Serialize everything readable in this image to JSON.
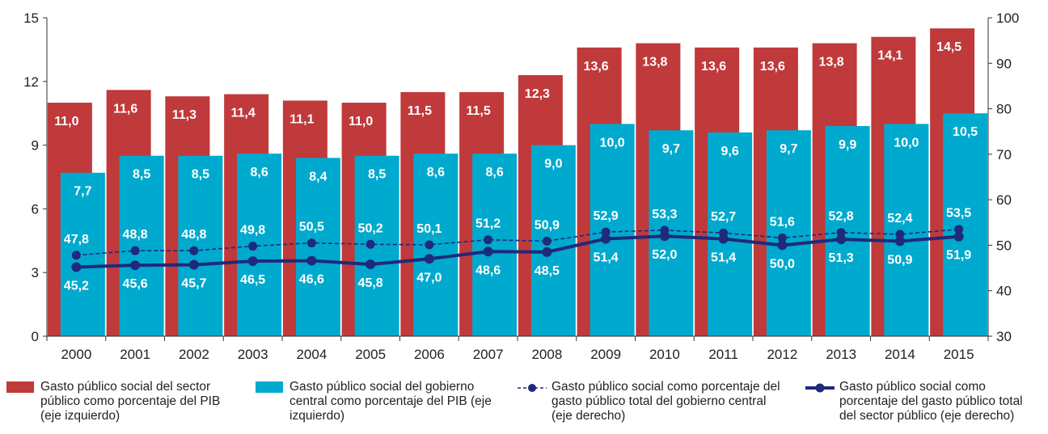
{
  "chart_data": {
    "type": "bar",
    "categories": [
      "2000",
      "2001",
      "2002",
      "2003",
      "2004",
      "2005",
      "2006",
      "2007",
      "2008",
      "2009",
      "2010",
      "2011",
      "2012",
      "2013",
      "2014",
      "2015"
    ],
    "y_left_ticks": [
      "0",
      "3",
      "6",
      "9",
      "12",
      "15"
    ],
    "y_right_ticks": [
      "30",
      "40",
      "50",
      "60",
      "70",
      "80",
      "90",
      "100"
    ],
    "ylim_left": [
      0,
      15
    ],
    "ylim_right": [
      30,
      100
    ],
    "grid": false,
    "legend_position": "bottom",
    "series": [
      {
        "name": "Gasto público social del sector público como porcentaje del PIB (eje izquierdo)",
        "kind": "bar",
        "axis": "left",
        "color": "#c0393b",
        "values": [
          11.0,
          11.6,
          11.3,
          11.4,
          11.1,
          11.0,
          11.5,
          11.5,
          12.3,
          13.6,
          13.8,
          13.6,
          13.6,
          13.8,
          14.1,
          14.5
        ],
        "labels": [
          "11,0",
          "11,6",
          "11,3",
          "11,4",
          "11,1",
          "11,0",
          "11,5",
          "11,5",
          "12,3",
          "13,6",
          "13,8",
          "13,6",
          "13,6",
          "13,8",
          "14,1",
          "14,5"
        ]
      },
      {
        "name": "Gasto público social del gobierno central como porcentaje del PIB (eje izquierdo)",
        "kind": "bar",
        "axis": "left",
        "color": "#00a9ce",
        "values": [
          7.7,
          8.5,
          8.5,
          8.6,
          8.4,
          8.5,
          8.6,
          8.6,
          9.0,
          10.0,
          9.7,
          9.6,
          9.7,
          9.9,
          10.0,
          10.5
        ],
        "labels": [
          "7,7",
          "8,5",
          "8,5",
          "8,6",
          "8,4",
          "8,5",
          "8,6",
          "8,6",
          "9,0",
          "10,0",
          "9,7",
          "9,6",
          "9,7",
          "9,9",
          "10,0",
          "10,5"
        ]
      },
      {
        "name": "Gasto público social como porcentaje del gasto público total del gobierno central (eje derecho)",
        "kind": "line-dashed",
        "axis": "right",
        "color": "#1f2a7a",
        "values": [
          47.8,
          48.8,
          48.8,
          49.8,
          50.5,
          50.2,
          50.1,
          51.2,
          50.9,
          52.9,
          53.3,
          52.7,
          51.6,
          52.8,
          52.4,
          53.5
        ],
        "labels": [
          "47,8",
          "48,8",
          "48,8",
          "49,8",
          "50,5",
          "50,2",
          "50,1",
          "51,2",
          "50,9",
          "52,9",
          "53,3",
          "52,7",
          "51,6",
          "52,8",
          "52,4",
          "53,5"
        ]
      },
      {
        "name": "Gasto público social como porcentaje del gasto público total del sector público (eje derecho)",
        "kind": "line",
        "axis": "right",
        "color": "#1f2a7a",
        "values": [
          45.2,
          45.6,
          45.7,
          46.5,
          46.6,
          45.8,
          47.0,
          48.6,
          48.5,
          51.4,
          52.0,
          51.4,
          50.0,
          51.3,
          50.9,
          51.9
        ],
        "labels": [
          "45,2",
          "45,6",
          "45,7",
          "46,5",
          "46,6",
          "45,8",
          "47,0",
          "48,6",
          "48,5",
          "51,4",
          "52,0",
          "51,4",
          "50,0",
          "51,3",
          "50,9",
          "51,9"
        ]
      }
    ]
  },
  "legend": [
    {
      "text": "Gasto público social del sector público como porcentaje del PIB (eje izquierdo)",
      "icon": "red-square-icon",
      "color": "#c0393b"
    },
    {
      "text": "Gasto público social del gobierno central como porcentaje del PIB (eje izquierdo)",
      "icon": "cyan-square-icon",
      "color": "#00a9ce"
    },
    {
      "text": "Gasto público social como porcentaje del gasto público total del gobierno central (eje derecho)",
      "icon": "dashed-line-marker-icon",
      "color": "#1f2a7a"
    },
    {
      "text": "Gasto público social como porcentaje del gasto público total del sector público (eje derecho)",
      "icon": "solid-line-marker-icon",
      "color": "#1f2a7a"
    }
  ]
}
